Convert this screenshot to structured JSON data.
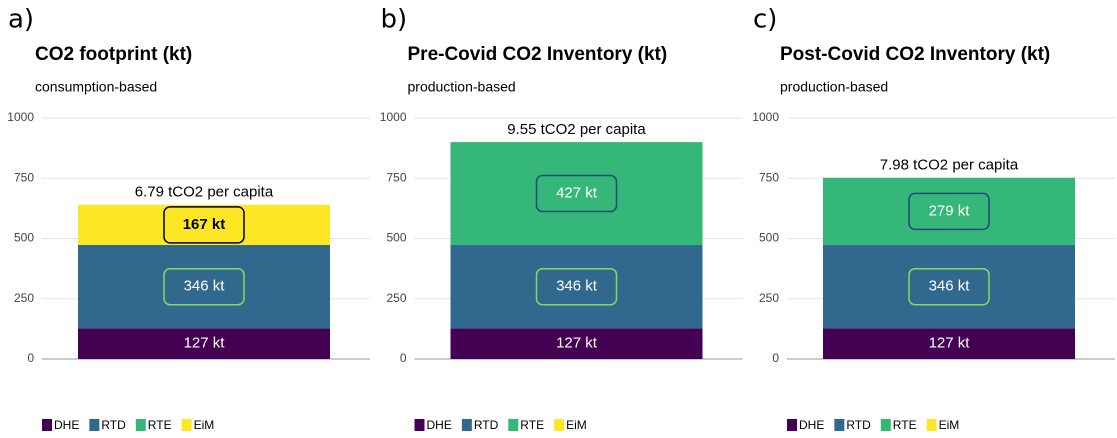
{
  "chart_data": [
    {
      "type": "bar",
      "panel_label": "a)",
      "title": "CO2 footprint (kt)",
      "subtitle": "consumption-based",
      "annotation": "6.79 tCO2 per capita",
      "categories": [
        null
      ],
      "ylim": [
        0,
        1000
      ],
      "yticks": [
        0,
        250,
        500,
        750,
        1000
      ],
      "grid": true,
      "stacked": true,
      "legend": "bottom-left",
      "series": [
        {
          "name": "DHE",
          "color": "#440154",
          "values": [
            127
          ],
          "value_labels": [
            "127 kt"
          ]
        },
        {
          "name": "RTD",
          "color": "#31688e",
          "values": [
            346
          ],
          "value_labels": [
            "346 kt"
          ]
        },
        {
          "name": "RTE",
          "color": "#35b779",
          "values": [
            null
          ],
          "value_labels": [
            null
          ]
        },
        {
          "name": "EiM",
          "color": "#fde725",
          "values": [
            167
          ],
          "value_labels": [
            "167 kt"
          ]
        }
      ]
    },
    {
      "type": "bar",
      "panel_label": "b)",
      "title": "Pre-Covid CO2 Inventory (kt)",
      "subtitle": "production-based",
      "annotation": "9.55 tCO2 per capita",
      "categories": [
        null
      ],
      "ylim": [
        0,
        1000
      ],
      "yticks": [
        0,
        250,
        500,
        750,
        1000
      ],
      "grid": true,
      "stacked": true,
      "legend": "bottom-left",
      "series": [
        {
          "name": "DHE",
          "color": "#440154",
          "values": [
            127
          ],
          "value_labels": [
            "127 kt"
          ]
        },
        {
          "name": "RTD",
          "color": "#31688e",
          "values": [
            346
          ],
          "value_labels": [
            "346 kt"
          ]
        },
        {
          "name": "RTE",
          "color": "#35b779",
          "values": [
            427
          ],
          "value_labels": [
            "427 kt"
          ]
        },
        {
          "name": "EiM",
          "color": "#fde725",
          "values": [
            null
          ],
          "value_labels": [
            null
          ]
        }
      ]
    },
    {
      "type": "bar",
      "panel_label": "c)",
      "title": "Post-Covid CO2 Inventory (kt)",
      "subtitle": "production-based",
      "annotation": "7.98 tCO2 per capita",
      "categories": [
        null
      ],
      "ylim": [
        0,
        1000
      ],
      "yticks": [
        0,
        250,
        500,
        750,
        1000
      ],
      "grid": true,
      "stacked": true,
      "legend": "bottom-left",
      "series": [
        {
          "name": "DHE",
          "color": "#440154",
          "values": [
            127
          ],
          "value_labels": [
            "127 kt"
          ]
        },
        {
          "name": "RTD",
          "color": "#31688e",
          "values": [
            346
          ],
          "value_labels": [
            "346 kt"
          ]
        },
        {
          "name": "RTE",
          "color": "#35b779",
          "values": [
            279
          ],
          "value_labels": [
            "279 kt"
          ]
        },
        {
          "name": "EiM",
          "color": "#fde725",
          "values": [
            null
          ],
          "value_labels": [
            null
          ]
        }
      ]
    }
  ]
}
